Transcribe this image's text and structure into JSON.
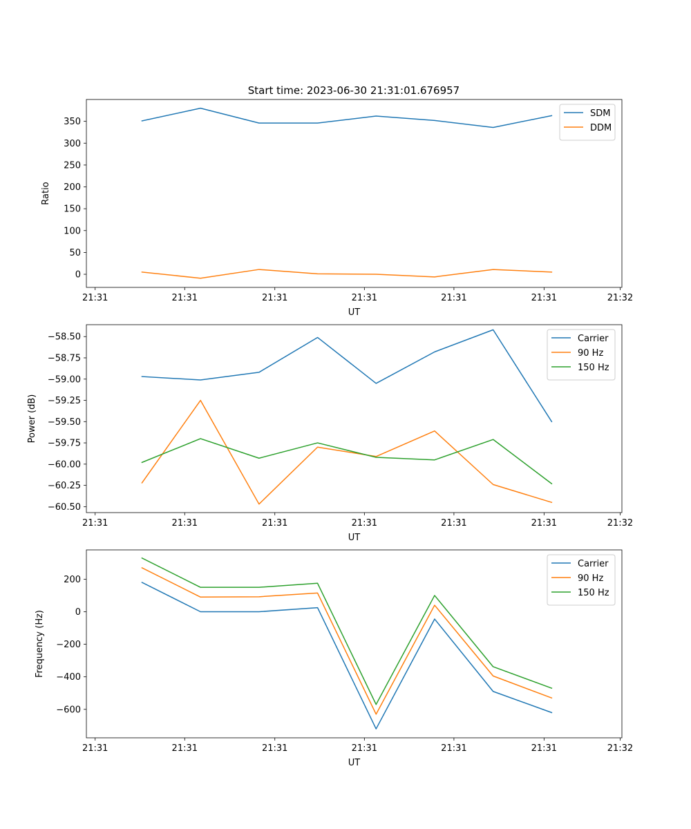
{
  "figure": {
    "title": "Start time: 2023-06-30 21:31:01.676957"
  },
  "chart_data": [
    {
      "type": "line",
      "xlabel": "UT",
      "ylabel": "Ratio",
      "x": [
        1,
        2,
        3,
        4,
        5,
        6,
        7,
        8
      ],
      "xlim": [
        0.05,
        9.2
      ],
      "x_ticks": [
        0.2,
        1.73,
        3.27,
        4.8,
        6.33,
        7.87,
        9.17
      ],
      "x_tick_labels": [
        "21:31",
        "21:31",
        "21:31",
        "21:31",
        "21:31",
        "21:31",
        "21:32"
      ],
      "ylim": [
        -30,
        400
      ],
      "y_ticks": [
        0,
        50,
        100,
        150,
        200,
        250,
        300,
        350
      ],
      "y_tick_labels": [
        "0",
        "50",
        "100",
        "150",
        "200",
        "250",
        "300",
        "350"
      ],
      "legend_position": "top-right",
      "series": [
        {
          "name": "SDM",
          "color": "#1f77b4",
          "values": [
            351,
            380,
            346,
            346,
            362,
            352,
            336,
            363
          ]
        },
        {
          "name": "DDM",
          "color": "#ff7f0e",
          "values": [
            5,
            -9,
            11,
            1,
            0,
            -6,
            11,
            5
          ]
        }
      ]
    },
    {
      "type": "line",
      "xlabel": "UT",
      "ylabel": "Power (dB)",
      "x": [
        1,
        2,
        3,
        4,
        5,
        6,
        7,
        8
      ],
      "xlim": [
        0.05,
        9.2
      ],
      "x_ticks": [
        0.2,
        1.73,
        3.27,
        4.8,
        6.33,
        7.87,
        9.17
      ],
      "x_tick_labels": [
        "21:31",
        "21:31",
        "21:31",
        "21:31",
        "21:31",
        "21:31",
        "21:32"
      ],
      "ylim": [
        -60.57,
        -58.36
      ],
      "y_ticks": [
        -58.5,
        -58.75,
        -59.0,
        -59.25,
        -59.5,
        -59.75,
        -60.0,
        -60.25,
        -60.5
      ],
      "y_tick_labels": [
        "−58.50",
        "−58.75",
        "−59.00",
        "−59.25",
        "−59.50",
        "−59.75",
        "−60.00",
        "−60.25",
        "−60.50"
      ],
      "legend_position": "top-right",
      "series": [
        {
          "name": "Carrier",
          "color": "#1f77b4",
          "values": [
            -58.97,
            -59.01,
            -58.92,
            -58.51,
            -59.05,
            -58.68,
            -58.42,
            -59.5
          ]
        },
        {
          "name": "90 Hz",
          "color": "#ff7f0e",
          "values": [
            -60.22,
            -59.25,
            -60.47,
            -59.8,
            -59.91,
            -59.61,
            -60.24,
            -60.45
          ]
        },
        {
          "name": "150 Hz",
          "color": "#2ca02c",
          "values": [
            -59.98,
            -59.7,
            -59.93,
            -59.75,
            -59.92,
            -59.95,
            -59.71,
            -60.23
          ]
        }
      ]
    },
    {
      "type": "line",
      "xlabel": "UT",
      "ylabel": "Frequency (Hz)",
      "x": [
        1,
        2,
        3,
        4,
        5,
        6,
        7,
        8
      ],
      "xlim": [
        0.05,
        9.2
      ],
      "x_ticks": [
        0.2,
        1.73,
        3.27,
        4.8,
        6.33,
        7.87,
        9.17
      ],
      "x_tick_labels": [
        "21:31",
        "21:31",
        "21:31",
        "21:31",
        "21:31",
        "21:31",
        "21:32"
      ],
      "ylim": [
        -775,
        380
      ],
      "y_ticks": [
        200,
        0,
        -200,
        -400,
        -600
      ],
      "y_tick_labels": [
        "200",
        "0",
        "−200",
        "−400",
        "−600"
      ],
      "legend_position": "top-right",
      "series": [
        {
          "name": "Carrier",
          "color": "#1f77b4",
          "values": [
            180,
            0,
            0,
            25,
            -720,
            -45,
            -490,
            -620
          ]
        },
        {
          "name": "90 Hz",
          "color": "#ff7f0e",
          "values": [
            270,
            90,
            92,
            115,
            -630,
            40,
            -395,
            -530
          ]
        },
        {
          "name": "150 Hz",
          "color": "#2ca02c",
          "values": [
            330,
            150,
            150,
            175,
            -570,
            100,
            -338,
            -470
          ]
        }
      ]
    }
  ]
}
